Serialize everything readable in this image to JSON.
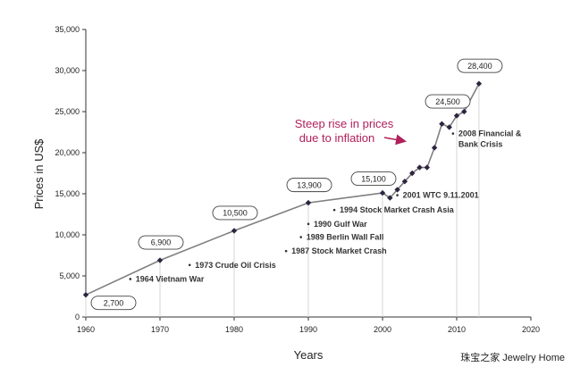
{
  "chart_data": {
    "type": "line",
    "xlabel": "Years",
    "ylabel": "Prices in US$",
    "xlim": [
      1960,
      2020
    ],
    "ylim": [
      0,
      35000
    ],
    "x_ticks": [
      "1960",
      "1970",
      "1980",
      "1990",
      "2000",
      "2010",
      "2020"
    ],
    "y_ticks": [
      "0",
      "5,000",
      "10,000",
      "15,000",
      "20,000",
      "25,000",
      "30,000",
      "35,000"
    ],
    "grid": false,
    "series": [
      {
        "color": "#7f7f7f",
        "marker_color": "#2e2440",
        "points": [
          {
            "x": 1960,
            "y": 2700
          },
          {
            "x": 1970,
            "y": 6900
          },
          {
            "x": 1980,
            "y": 10500
          },
          {
            "x": 1990,
            "y": 13900
          },
          {
            "x": 2000,
            "y": 15100
          },
          {
            "x": 2001,
            "y": 14500
          },
          {
            "x": 2002,
            "y": 15500
          },
          {
            "x": 2003,
            "y": 16500
          },
          {
            "x": 2004,
            "y": 17500
          },
          {
            "x": 2005,
            "y": 18200
          },
          {
            "x": 2006,
            "y": 18200
          },
          {
            "x": 2007,
            "y": 20600
          },
          {
            "x": 2008,
            "y": 23500
          },
          {
            "x": 2009,
            "y": 23100
          },
          {
            "x": 2010,
            "y": 24500
          },
          {
            "x": 2011,
            "y": 25000
          },
          {
            "x": 2013,
            "y": 28400
          }
        ]
      }
    ],
    "value_callouts": [
      {
        "x": 1960,
        "y": 2700,
        "label": "2,700",
        "placement": "below-right"
      },
      {
        "x": 1970,
        "y": 6900,
        "label": "6,900",
        "placement": "above"
      },
      {
        "x": 1980,
        "y": 10500,
        "label": "10,500",
        "placement": "above"
      },
      {
        "x": 1990,
        "y": 13900,
        "label": "13,900",
        "placement": "above"
      },
      {
        "x": 2000,
        "y": 15100,
        "label": "15,100",
        "placement": "above-left"
      },
      {
        "x": 2010,
        "y": 24500,
        "label": "24,500",
        "placement": "above-left"
      },
      {
        "x": 2013,
        "y": 28400,
        "label": "28,400",
        "placement": "above"
      }
    ],
    "events": [
      {
        "year": 1966,
        "label": "1964 Vietnam War",
        "y": 4300
      },
      {
        "year": 1974,
        "label": "1973 Crude Oil Crisis",
        "y": 6000
      },
      {
        "year": 1987,
        "label": "1987 Stock Market Crash",
        "y": 7700
      },
      {
        "year": 1989,
        "label": "1989 Berlin Wall Fall",
        "y": 9400
      },
      {
        "year": 1990,
        "label": "1990 Gulf War",
        "y": 11000
      },
      {
        "year": 1993.5,
        "label": "1994 Stock Market Crash Asia",
        "y": 12700
      },
      {
        "year": 2002,
        "label": "2001 WTC 9.11.2001",
        "y": 14500
      },
      {
        "year": 2009.5,
        "label": "2008 Financial &",
        "line2": "Bank Crisis",
        "y": 22000
      }
    ],
    "annotation": {
      "line1": "Steep rise in prices",
      "line2": "due to inflation",
      "color": "#b0205a"
    }
  },
  "watermark": "珠宝之家  Jewelry Home"
}
